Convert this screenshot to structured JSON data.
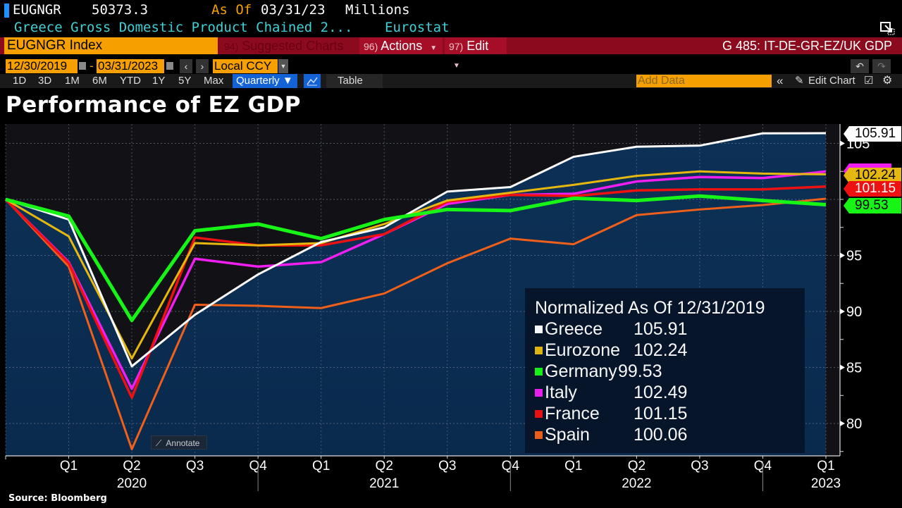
{
  "header": {
    "ticker": "EUGNGR",
    "last_value": "50373.3",
    "as_of_label": "As Of",
    "as_of_date": "03/31/23",
    "units": "Millions",
    "description": "Greece Gross Domestic Product Chained 2...",
    "source_name": "Eurostat"
  },
  "command_bar": {
    "security": "EUGNGR Index",
    "suggested_charts_num": "94)",
    "suggested_charts_label": "Suggested Charts",
    "actions_num": "96)",
    "actions_label": "Actions",
    "edit_num": "97)",
    "edit_label": "Edit",
    "chart_name": "G 485: IT-DE-GR-EZ/UK GDP"
  },
  "date_range": {
    "start": "12/30/2019",
    "separator": "-",
    "end": "03/31/2023",
    "currency": "Local CCY"
  },
  "range_buttons": [
    "1D",
    "3D",
    "1M",
    "6M",
    "YTD",
    "1Y",
    "5Y",
    "Max"
  ],
  "toolbar": {
    "frequency": "Quarterly ▼",
    "table_label": "Table",
    "add_data_placeholder": "Add Data",
    "edit_chart_label": "Edit Chart",
    "collapse_icon": "«"
  },
  "icons": {
    "expand": "expand-window-icon",
    "calendar": "calendar-icon",
    "prev": "‹",
    "next": "›",
    "undo": "↶",
    "redo": "↷",
    "line_chart": "line-chart-icon",
    "pencil": "pencil-icon",
    "settings": "⚙"
  },
  "annotate_label": "Annotate",
  "source_text": "Source: Bloomberg",
  "legend": {
    "title": "Normalized As Of 12/31/2019"
  },
  "chart_data": {
    "type": "line",
    "title": "Performance of EZ GDP",
    "xlabel": "",
    "ylabel": "",
    "x": [
      "Q4 2019",
      "Q1 2020",
      "Q2 2020",
      "Q3 2020",
      "Q4 2020",
      "Q1 2021",
      "Q2 2021",
      "Q3 2021",
      "Q4 2021",
      "Q1 2022",
      "Q2 2022",
      "Q3 2022",
      "Q4 2022",
      "Q1 2023"
    ],
    "x_tick_labels": [
      "Q1",
      "Q2",
      "Q3",
      "Q4",
      "Q1",
      "Q2",
      "Q3",
      "Q4",
      "Q1",
      "Q2",
      "Q3",
      "Q4",
      "Q1"
    ],
    "year_labels": [
      {
        "label": "2020",
        "at": "Q2 2020"
      },
      {
        "label": "2021",
        "at": "Q2 2021"
      },
      {
        "label": "2022",
        "at": "Q2 2022"
      },
      {
        "label": "2023",
        "at": "Q1 2023"
      }
    ],
    "ylim": [
      77.5,
      107.5
    ],
    "yticks": [
      80,
      85,
      90,
      95,
      100,
      105
    ],
    "ytick_labels_shown": [
      "80",
      "85",
      "90",
      "95",
      "105"
    ],
    "grid": true,
    "area_fill_series": "Greece",
    "legend_position": "bottom-right",
    "series": [
      {
        "name": "Greece",
        "color": "#ffffff",
        "last": "105.91",
        "values": [
          100,
          98.2,
          85.1,
          89.7,
          93.3,
          96.2,
          97.5,
          100.7,
          101.1,
          103.8,
          104.7,
          104.8,
          105.9,
          105.91
        ]
      },
      {
        "name": "Eurozone",
        "color": "#e6b80f",
        "last": "102.24",
        "values": [
          100,
          96.7,
          85.8,
          96.1,
          95.9,
          96.1,
          97.8,
          99.9,
          100.6,
          101.3,
          102.1,
          102.5,
          102.3,
          102.24
        ]
      },
      {
        "name": "Germany",
        "color": "#17f517",
        "last": "99.53",
        "values": [
          100,
          98.5,
          89.2,
          97.2,
          97.8,
          96.5,
          98.2,
          99.1,
          99.0,
          100.1,
          99.9,
          100.3,
          99.9,
          99.53
        ]
      },
      {
        "name": "Italy",
        "color": "#f01ef0",
        "last": "102.49",
        "values": [
          100,
          94.4,
          83.1,
          94.7,
          94.0,
          94.4,
          96.9,
          99.6,
          100.4,
          100.5,
          101.6,
          102.0,
          101.9,
          102.49
        ]
      },
      {
        "name": "France",
        "color": "#ee1111",
        "last": "101.15",
        "values": [
          100,
          94.3,
          82.3,
          96.6,
          95.9,
          95.9,
          96.9,
          99.8,
          100.4,
          100.3,
          100.8,
          100.9,
          100.9,
          101.15
        ]
      },
      {
        "name": "Spain",
        "color": "#f0601a",
        "last": "100.06",
        "values": [
          100,
          94.0,
          77.7,
          90.6,
          90.5,
          90.3,
          91.6,
          94.3,
          96.5,
          96.0,
          98.6,
          99.1,
          99.5,
          100.06
        ]
      }
    ]
  }
}
